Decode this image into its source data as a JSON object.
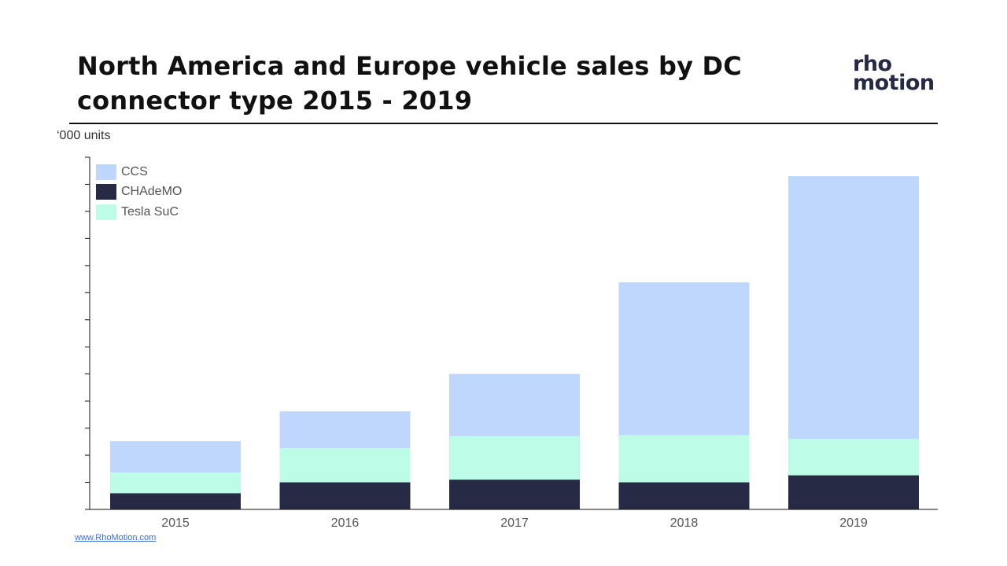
{
  "header": {
    "title": "North America and Europe vehicle sales by DC connector type 2015 - 2019",
    "logo_line1": "rho",
    "logo_line2": "motion"
  },
  "footer": {
    "link": "www.RhoMotion.com"
  },
  "colors": {
    "ccs": "#bfd7fd",
    "chademo": "#262a45",
    "tesla": "#bdfde7",
    "axis": "#111111"
  },
  "chart_data": {
    "type": "bar",
    "stacked": true,
    "ylabel": "‘000 units",
    "ylim": [
      0,
      650
    ],
    "categories": [
      "2015",
      "2016",
      "2017",
      "2018",
      "2019"
    ],
    "series": [
      {
        "name": "CHAdeMO",
        "values": [
          30,
          50,
          55,
          50,
          63
        ]
      },
      {
        "name": "Tesla SuC",
        "values": [
          38,
          63,
          80,
          87,
          67
        ]
      },
      {
        "name": "CCS",
        "values": [
          58,
          68,
          115,
          282,
          485
        ]
      }
    ],
    "legend": [
      "CCS",
      "CHAdeMO",
      "Tesla SuC"
    ],
    "legend_position": "top-left",
    "grid": false
  }
}
